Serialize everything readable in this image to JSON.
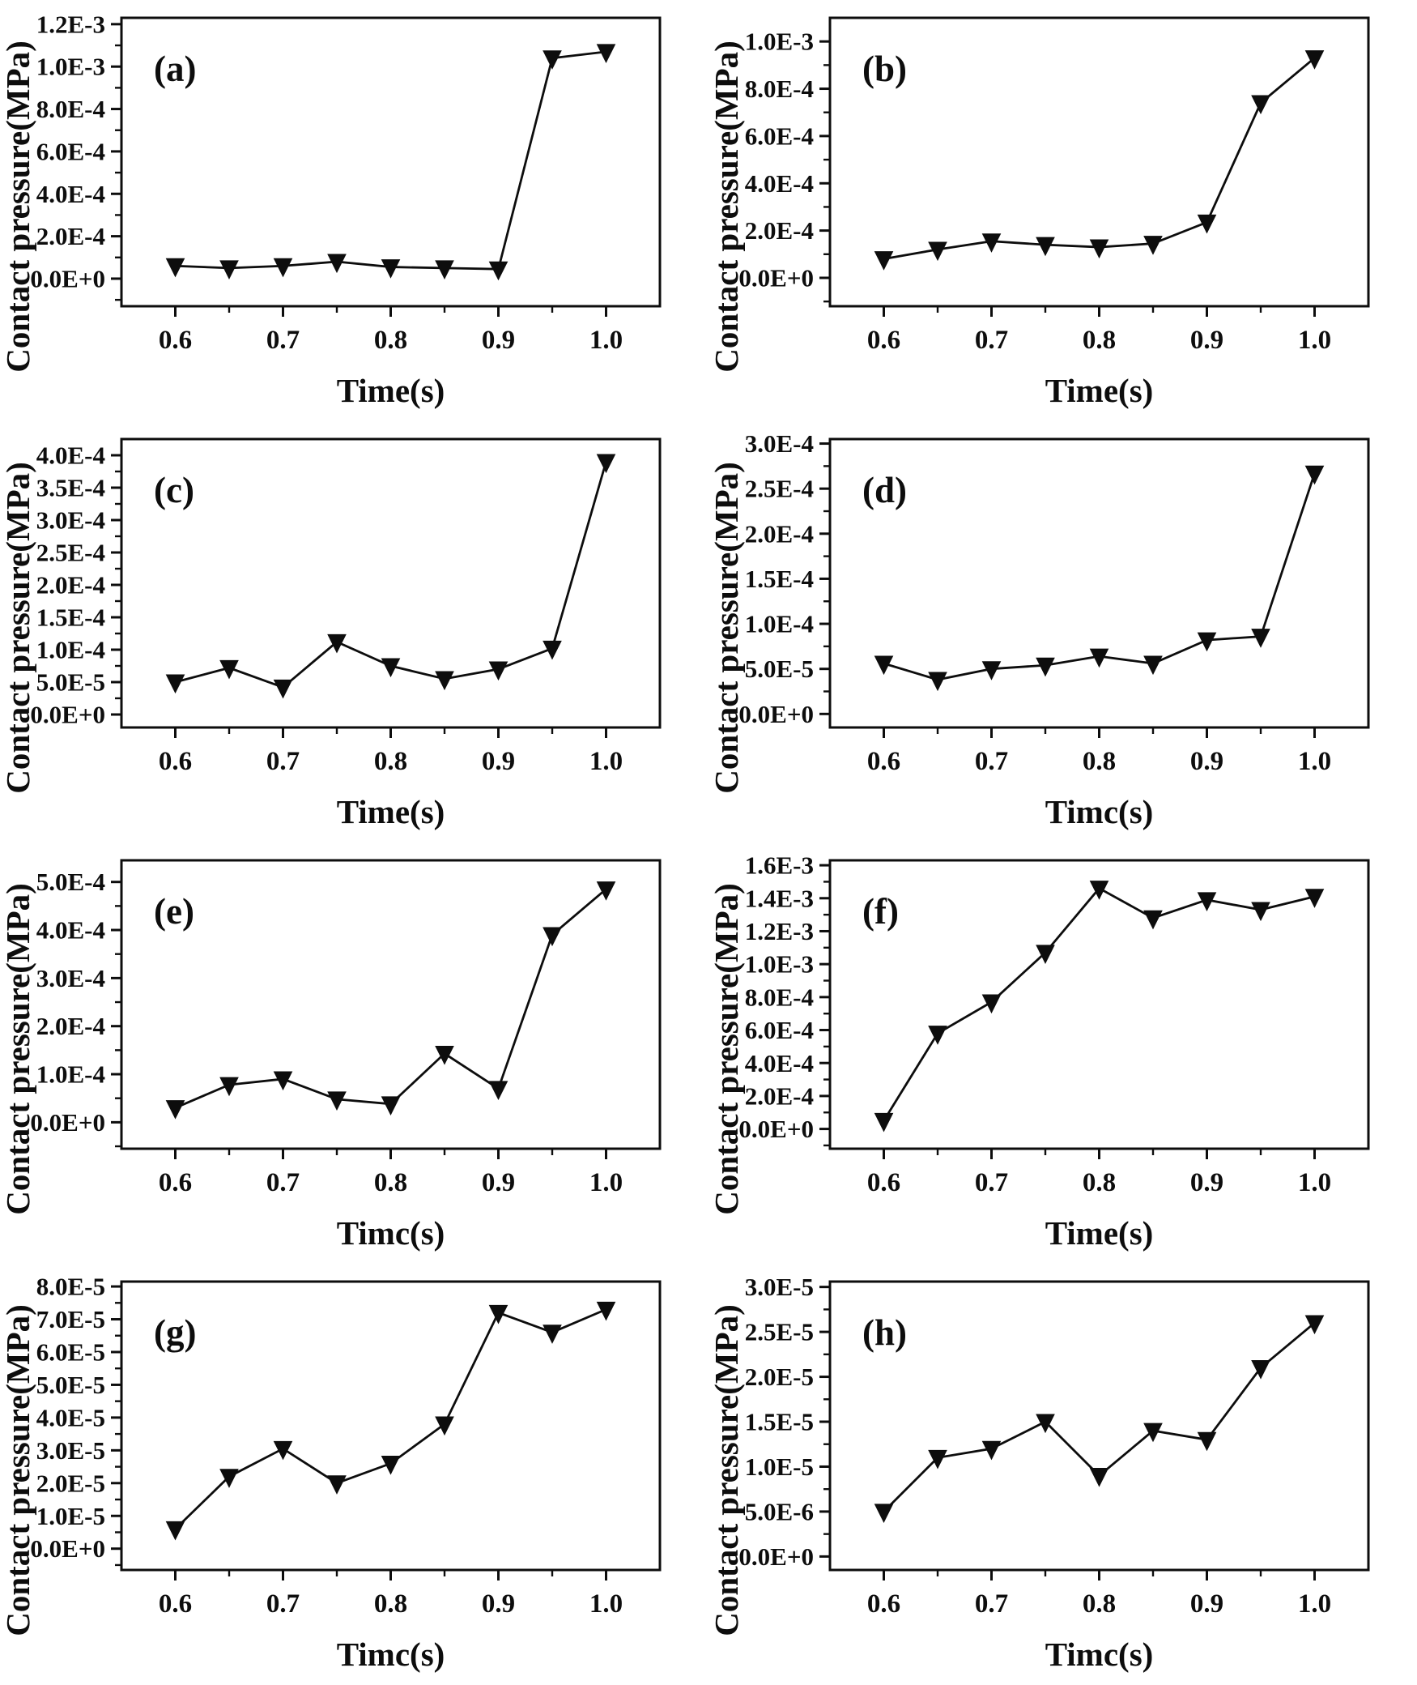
{
  "page": {
    "background": "#ffffff",
    "ink": "#0d0d0d"
  },
  "chart_data": [
    {
      "type": "line",
      "panel_label": "(a)",
      "xlabel": "Time(s)",
      "ylabel": "Contact pressure(MPa)",
      "series_name": "contact-pressure",
      "marker": "triangle-down",
      "line_color": "#0d0d0d",
      "grid": false,
      "legend": "none",
      "x": [
        0.6,
        0.65,
        0.7,
        0.75,
        0.8,
        0.85,
        0.9,
        0.95,
        1.0
      ],
      "values": [
        6e-05,
        5e-05,
        6e-05,
        8e-05,
        5.5e-05,
        5e-05,
        4.5e-05,
        0.00104,
        0.00107
      ],
      "xlim": [
        0.55,
        1.05
      ],
      "ylim": [
        -0.00013,
        0.00123
      ],
      "xticks": [
        0.6,
        0.7,
        0.8,
        0.9,
        1.0
      ],
      "xtick_labels": [
        "0.6",
        "0.7",
        "0.8",
        "0.9",
        "1.0"
      ],
      "xminor": [
        0.65,
        0.75,
        0.85,
        0.95
      ],
      "yticks": [
        0.0,
        0.0002,
        0.0004,
        0.0006,
        0.0008,
        0.001,
        0.0012
      ],
      "ytick_labels": [
        "0.0E+0",
        "2.0E-4",
        "4.0E-4",
        "6.0E-4",
        "8.0E-4",
        "1.0E-3",
        "1.2E-3"
      ]
    },
    {
      "type": "line",
      "panel_label": "(b)",
      "xlabel": "Time(s)",
      "ylabel": "Contact pressure(MPa)",
      "series_name": "contact-pressure",
      "marker": "triangle-down",
      "line_color": "#0d0d0d",
      "grid": false,
      "legend": "none",
      "x": [
        0.6,
        0.65,
        0.7,
        0.75,
        0.8,
        0.85,
        0.9,
        0.95,
        1.0
      ],
      "values": [
        8e-05,
        0.00012,
        0.000155,
        0.00014,
        0.00013,
        0.000145,
        0.000235,
        0.00074,
        0.00093
      ],
      "xlim": [
        0.55,
        1.05
      ],
      "ylim": [
        -0.00012,
        0.0011
      ],
      "xticks": [
        0.6,
        0.7,
        0.8,
        0.9,
        1.0
      ],
      "xtick_labels": [
        "0.6",
        "0.7",
        "0.8",
        "0.9",
        "1.0"
      ],
      "xminor": [
        0.65,
        0.75,
        0.85,
        0.95
      ],
      "yticks": [
        0.0,
        0.0002,
        0.0004,
        0.0006,
        0.0008,
        0.001
      ],
      "ytick_labels": [
        "0.0E+0",
        "2.0E-4",
        "4.0E-4",
        "6.0E-4",
        "8.0E-4",
        "1.0E-3"
      ]
    },
    {
      "type": "line",
      "panel_label": "(c)",
      "xlabel": "Time(s)",
      "ylabel": "Contact pressure(MPa)",
      "series_name": "contact-pressure",
      "marker": "triangle-down",
      "line_color": "#0d0d0d",
      "grid": false,
      "legend": "none",
      "x": [
        0.6,
        0.65,
        0.7,
        0.75,
        0.8,
        0.85,
        0.9,
        0.95,
        1.0
      ],
      "values": [
        5e-05,
        7.2e-05,
        4.2e-05,
        0.000112,
        7.5e-05,
        5.5e-05,
        7e-05,
        0.000102,
        0.00039
      ],
      "xlim": [
        0.55,
        1.05
      ],
      "ylim": [
        -2e-05,
        0.000425
      ],
      "xticks": [
        0.6,
        0.7,
        0.8,
        0.9,
        1.0
      ],
      "xtick_labels": [
        "0.6",
        "0.7",
        "0.8",
        "0.9",
        "1.0"
      ],
      "xminor": [
        0.65,
        0.75,
        0.85,
        0.95
      ],
      "yticks": [
        0.0,
        5e-05,
        0.0001,
        0.00015,
        0.0002,
        0.00025,
        0.0003,
        0.00035,
        0.0004
      ],
      "ytick_labels": [
        "0.0E+0",
        "5.0E-5",
        "1.0E-4",
        "1.5E-4",
        "2.0E-4",
        "2.5E-4",
        "3.0E-4",
        "3.5E-4",
        "4.0E-4"
      ]
    },
    {
      "type": "line",
      "panel_label": "(d)",
      "xlabel": "Timc(s)",
      "ylabel": "Contact pressure(MPa)",
      "series_name": "contact-pressure",
      "marker": "triangle-down",
      "line_color": "#0d0d0d",
      "grid": false,
      "legend": "none",
      "x": [
        0.6,
        0.65,
        0.7,
        0.75,
        0.8,
        0.85,
        0.9,
        0.95,
        1.0
      ],
      "values": [
        5.6e-05,
        3.8e-05,
        5e-05,
        5.4e-05,
        6.4e-05,
        5.6e-05,
        8.2e-05,
        8.6e-05,
        0.000267
      ],
      "xlim": [
        0.55,
        1.05
      ],
      "ylim": [
        -1.5e-05,
        0.000305
      ],
      "xticks": [
        0.6,
        0.7,
        0.8,
        0.9,
        1.0
      ],
      "xtick_labels": [
        "0.6",
        "0.7",
        "0.8",
        "0.9",
        "1.0"
      ],
      "xminor": [
        0.65,
        0.75,
        0.85,
        0.95
      ],
      "yticks": [
        0.0,
        5e-05,
        0.0001,
        0.00015,
        0.0002,
        0.00025,
        0.0003
      ],
      "ytick_labels": [
        "0.0E+0",
        "5.0E-5",
        "1.0E-4",
        "1.5E-4",
        "2.0E-4",
        "2.5E-4",
        "3.0E-4"
      ]
    },
    {
      "type": "line",
      "panel_label": "(e)",
      "xlabel": "Timc(s)",
      "ylabel": "Contact pressure(MPa)",
      "series_name": "contact-pressure",
      "marker": "triangle-down",
      "line_color": "#0d0d0d",
      "grid": false,
      "legend": "none",
      "x": [
        0.6,
        0.65,
        0.7,
        0.75,
        0.8,
        0.85,
        0.9,
        0.95,
        1.0
      ],
      "values": [
        3e-05,
        7.8e-05,
        9e-05,
        4.8e-05,
        3.8e-05,
        0.000143,
        7e-05,
        0.00039,
        0.000485
      ],
      "xlim": [
        0.55,
        1.05
      ],
      "ylim": [
        -5.5e-05,
        0.000545
      ],
      "xticks": [
        0.6,
        0.7,
        0.8,
        0.9,
        1.0
      ],
      "xtick_labels": [
        "0.6",
        "0.7",
        "0.8",
        "0.9",
        "1.0"
      ],
      "xminor": [
        0.65,
        0.75,
        0.85,
        0.95
      ],
      "yticks": [
        0.0,
        0.0001,
        0.0002,
        0.0003,
        0.0004,
        0.0005
      ],
      "ytick_labels": [
        "0.0E+0",
        "1.0E-4",
        "2.0E-4",
        "3.0E-4",
        "4.0E-4",
        "5.0E-4"
      ]
    },
    {
      "type": "line",
      "panel_label": "(f)",
      "xlabel": "Time(s)",
      "ylabel": "Contact pressure(MPa)",
      "series_name": "contact-pressure",
      "marker": "triangle-down",
      "line_color": "#0d0d0d",
      "grid": false,
      "legend": "none",
      "x": [
        0.6,
        0.65,
        0.7,
        0.75,
        0.8,
        0.85,
        0.9,
        0.95,
        1.0
      ],
      "values": [
        5e-05,
        0.00058,
        0.00077,
        0.00107,
        0.00146,
        0.00128,
        0.00139,
        0.00133,
        0.00141
      ],
      "xlim": [
        0.55,
        1.05
      ],
      "ylim": [
        -0.00012,
        0.00163
      ],
      "xticks": [
        0.6,
        0.7,
        0.8,
        0.9,
        1.0
      ],
      "xtick_labels": [
        "0.6",
        "0.7",
        "0.8",
        "0.9",
        "1.0"
      ],
      "xminor": [
        0.65,
        0.75,
        0.85,
        0.95
      ],
      "yticks": [
        0.0,
        0.0002,
        0.0004,
        0.0006,
        0.0008,
        0.001,
        0.0012,
        0.0014,
        0.0016
      ],
      "ytick_labels": [
        "0.0E+0",
        "2.0E-4",
        "4.0E-4",
        "6.0E-4",
        "8.0E-4",
        "1.0E-3",
        "1.2E-3",
        "1.4E-3",
        "1.6E-3"
      ]
    },
    {
      "type": "line",
      "panel_label": "(g)",
      "xlabel": "Timc(s)",
      "ylabel": "Contact pressure(MPa)",
      "series_name": "contact-pressure",
      "marker": "triangle-down",
      "line_color": "#0d0d0d",
      "grid": false,
      "legend": "none",
      "x": [
        0.6,
        0.65,
        0.7,
        0.75,
        0.8,
        0.85,
        0.9,
        0.95,
        1.0
      ],
      "values": [
        6e-06,
        2.2e-05,
        3.05e-05,
        2e-05,
        2.6e-05,
        3.8e-05,
        7.2e-05,
        6.6e-05,
        7.3e-05
      ],
      "xlim": [
        0.55,
        1.05
      ],
      "ylim": [
        -6.5e-06,
        8.15e-05
      ],
      "xticks": [
        0.6,
        0.7,
        0.8,
        0.9,
        1.0
      ],
      "xtick_labels": [
        "0.6",
        "0.7",
        "0.8",
        "0.9",
        "1.0"
      ],
      "xminor": [
        0.65,
        0.75,
        0.85,
        0.95
      ],
      "yticks": [
        0.0,
        1e-05,
        2e-05,
        3e-05,
        4e-05,
        5e-05,
        6e-05,
        7e-05,
        8e-05
      ],
      "ytick_labels": [
        "0.0E+0",
        "1.0E-5",
        "2.0E-5",
        "3.0E-5",
        "4.0E-5",
        "5.0E-5",
        "6.0E-5",
        "7.0E-5",
        "8.0E-5"
      ]
    },
    {
      "type": "line",
      "panel_label": "(h)",
      "xlabel": "Timc(s)",
      "ylabel": "Contact pressure(MPa)",
      "series_name": "contact-pressure",
      "marker": "triangle-down",
      "line_color": "#0d0d0d",
      "grid": false,
      "legend": "none",
      "x": [
        0.6,
        0.65,
        0.7,
        0.75,
        0.8,
        0.85,
        0.9,
        0.95,
        1.0
      ],
      "values": [
        5e-06,
        1.1e-05,
        1.2e-05,
        1.5e-05,
        9e-06,
        1.4e-05,
        1.3e-05,
        2.1e-05,
        2.6e-05
      ],
      "xlim": [
        0.55,
        1.05
      ],
      "ylim": [
        -1.5e-06,
        3.06e-05
      ],
      "xticks": [
        0.6,
        0.7,
        0.8,
        0.9,
        1.0
      ],
      "xtick_labels": [
        "0.6",
        "0.7",
        "0.8",
        "0.9",
        "1.0"
      ],
      "xminor": [
        0.65,
        0.75,
        0.85,
        0.95
      ],
      "yticks": [
        0.0,
        5e-06,
        1e-05,
        1.5e-05,
        2e-05,
        2.5e-05,
        3e-05
      ],
      "ytick_labels": [
        "0.0E+0",
        "5.0E-6",
        "1.0E-5",
        "1.5E-5",
        "2.0E-5",
        "2.5E-5",
        "3.0E-5"
      ]
    }
  ]
}
